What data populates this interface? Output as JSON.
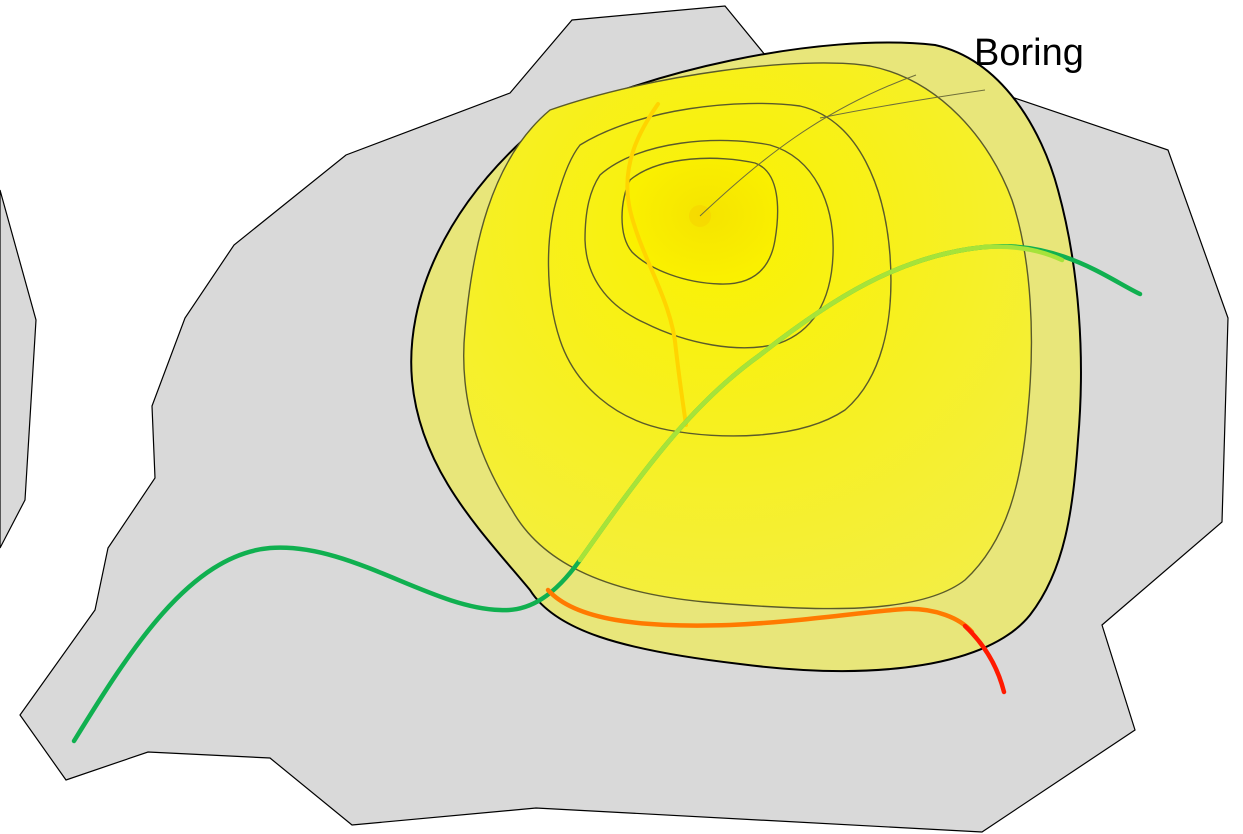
{
  "labels": {
    "boring": "Boring"
  },
  "colors": {
    "background": "#ffffff",
    "land_fill": "#d9d9d9",
    "outline": "#000000",
    "plume_outer": "#e8e67a",
    "plume_inner": "#f2ef4a",
    "plume_core": "#f7f000",
    "contour_stroke": "#5a5a2a",
    "stream_green": "#10b050",
    "stream_lime": "#a6e33a",
    "stream_orange": "#ff7a00",
    "stream_red": "#ff1a00",
    "stream_yellow": "#ffd400",
    "boring_point": "#f6d800"
  }
}
